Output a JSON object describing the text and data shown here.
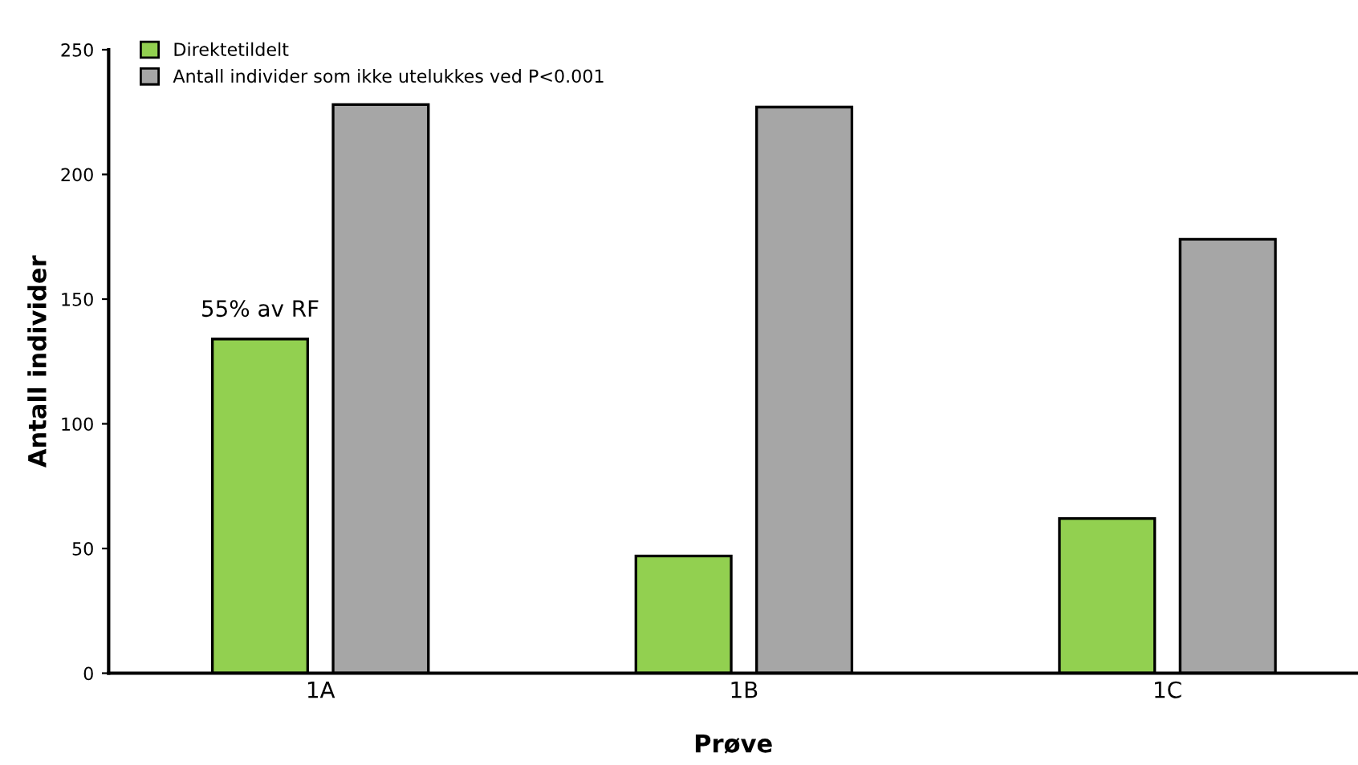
{
  "chart_data": {
    "type": "bar",
    "xlabel": "Prøve",
    "ylabel": "Antall individer",
    "categories": [
      "1A",
      "1B",
      "1C"
    ],
    "series": [
      {
        "name": "Direktetildelt",
        "color": "#92d050",
        "values": [
          134,
          47,
          62
        ]
      },
      {
        "name": "Antall individer som ikke utelukkes ved P<0.001",
        "color": "#a6a6a6",
        "values": [
          228,
          227,
          174
        ]
      }
    ],
    "ylim": [
      0,
      250
    ],
    "yticks": [
      0,
      50,
      100,
      150,
      200,
      250
    ],
    "grid": false,
    "legend": "top left",
    "annotations": [
      "55% av RF"
    ]
  }
}
